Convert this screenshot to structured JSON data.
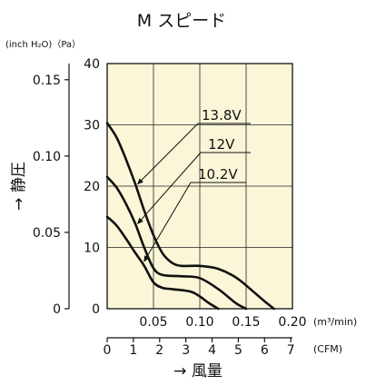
{
  "chart_data": {
    "type": "line",
    "title": "M スピード",
    "ylabel": "→ 静圧",
    "xlabel": "→ 風量",
    "y_units_label": "(inch H₂O)（Pa）",
    "x_units_label_primary": "(m³/min)",
    "x_units_label_secondary": "(CFM)",
    "y_pa_ticks": [
      "0",
      "10",
      "20",
      "30",
      "40"
    ],
    "y_inch_ticks": [
      "0",
      "0.05",
      "0.10",
      "0.15"
    ],
    "x_m3_ticks": [
      "0.05",
      "0.10",
      "0.15",
      "0.20"
    ],
    "x_cfm_ticks": [
      "0",
      "1",
      "2",
      "3",
      "4",
      "5",
      "6",
      "7"
    ],
    "ylim_pa": [
      0,
      40
    ],
    "xlim_m3": [
      0,
      0.2
    ],
    "grid": true,
    "plot_background": "#fbf6d8",
    "series": [
      {
        "name": "13.8V",
        "x": [
          0,
          0.01,
          0.02,
          0.03,
          0.04,
          0.05,
          0.06,
          0.07,
          0.08,
          0.1,
          0.12,
          0.14,
          0.16,
          0.17,
          0.18
        ],
        "y": [
          30.3,
          28.0,
          24.5,
          20.5,
          16.0,
          12.0,
          9.0,
          7.5,
          7.0,
          7.0,
          6.5,
          5.0,
          2.5,
          1.2,
          0
        ]
      },
      {
        "name": "12V",
        "x": [
          0,
          0.01,
          0.02,
          0.03,
          0.04,
          0.05,
          0.06,
          0.08,
          0.1,
          0.12,
          0.13,
          0.14,
          0.15
        ],
        "y": [
          21.5,
          19.8,
          17.2,
          14.0,
          10.0,
          6.6,
          5.5,
          5.3,
          5.0,
          3.2,
          2.0,
          0.8,
          0
        ]
      },
      {
        "name": "10.2V",
        "x": [
          0,
          0.01,
          0.02,
          0.03,
          0.04,
          0.05,
          0.06,
          0.07,
          0.09,
          0.1,
          0.11,
          0.12
        ],
        "y": [
          15.0,
          13.6,
          11.5,
          9.2,
          7.0,
          4.3,
          3.4,
          3.2,
          2.8,
          2.0,
          0.9,
          0
        ]
      }
    ]
  }
}
